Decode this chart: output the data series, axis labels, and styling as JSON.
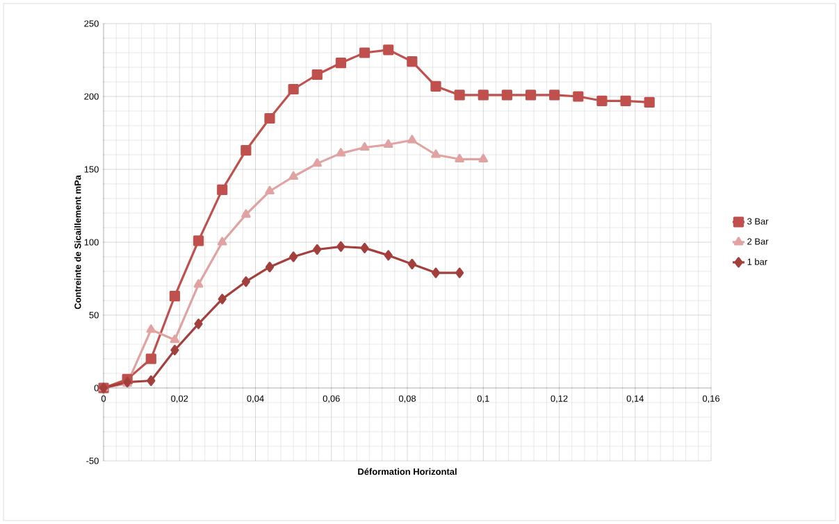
{
  "chart_data": {
    "type": "line",
    "xlabel": "Déformation Horizontal",
    "ylabel": "Contreinte de Sicaillement  mPa",
    "xlim": [
      0,
      0.16
    ],
    "ylim": [
      -50,
      250
    ],
    "xticks": [
      0,
      {
        "value": 0.02,
        "label": "0,02"
      },
      {
        "value": 0.04,
        "label": "0,04"
      },
      {
        "value": 0.06,
        "label": "0,06"
      },
      {
        "value": 0.08,
        "label": "0,08"
      },
      {
        "value": 0.1,
        "label": "0,1"
      },
      {
        "value": 0.12,
        "label": "0,12"
      },
      {
        "value": 0.14,
        "label": "0,14"
      },
      {
        "value": 0.16,
        "label": "0,16"
      }
    ],
    "yticks": [
      -50,
      0,
      50,
      100,
      150,
      200,
      250
    ],
    "grid": true,
    "legend": "right",
    "line_style": "solid",
    "series": [
      {
        "name": "3 Bar",
        "color": "#c0504d",
        "marker": "square",
        "x": [
          0,
          0.00625,
          0.0125,
          0.01875,
          0.025,
          0.03125,
          0.0375,
          0.04375,
          0.05,
          0.05625,
          0.0625,
          0.06875,
          0.075,
          0.08125,
          0.0875,
          0.09375,
          0.1,
          0.10625,
          0.1125,
          0.11875,
          0.125,
          0.13125,
          0.1375,
          0.14375
        ],
        "values": [
          0,
          6,
          20,
          63,
          101,
          136,
          163,
          185,
          205,
          215,
          223,
          230,
          232,
          224,
          207,
          201,
          201,
          201,
          201,
          201,
          200,
          197,
          197,
          196
        ]
      },
      {
        "name": "2 Bar",
        "color": "#e0a3a1",
        "marker": "triangle",
        "x": [
          0,
          0.00625,
          0.0125,
          0.01875,
          0.025,
          0.03125,
          0.0375,
          0.04375,
          0.05,
          0.05625,
          0.0625,
          0.06875,
          0.075,
          0.08125,
          0.0875,
          0.09375,
          0.1
        ],
        "values": [
          0,
          3,
          40,
          33,
          71,
          100,
          119,
          135,
          145,
          154,
          161,
          165,
          167,
          170,
          160,
          157,
          157
        ]
      },
      {
        "name": "1 bar",
        "color": "#a33f3c",
        "marker": "diamond",
        "x": [
          0,
          0.00625,
          0.0125,
          0.01875,
          0.025,
          0.03125,
          0.0375,
          0.04375,
          0.05,
          0.05625,
          0.0625,
          0.06875,
          0.075,
          0.08125,
          0.0875,
          0.09375
        ],
        "values": [
          0,
          4,
          5,
          26,
          44,
          61,
          73,
          83,
          90,
          95,
          97,
          96,
          91,
          85,
          79,
          79
        ]
      }
    ]
  }
}
